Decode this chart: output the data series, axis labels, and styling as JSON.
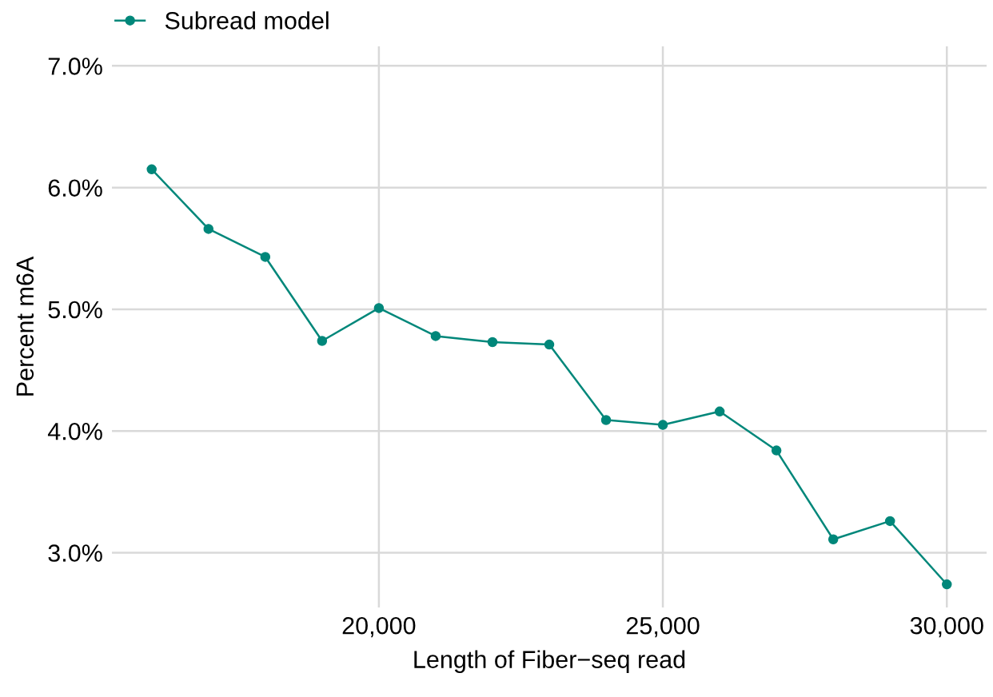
{
  "chart_data": {
    "type": "line",
    "xlabel": "Length of Fiber−seq read",
    "ylabel": "Percent m6A",
    "x": [
      16000,
      17000,
      18000,
      19000,
      20000,
      21000,
      22000,
      23000,
      24000,
      25000,
      26000,
      27000,
      28000,
      29000,
      30000
    ],
    "series": [
      {
        "name": "Subread model",
        "color": "#00877a",
        "values": [
          6.15,
          5.66,
          5.43,
          4.74,
          5.01,
          4.78,
          4.73,
          4.71,
          4.09,
          4.05,
          4.16,
          3.84,
          3.11,
          3.26,
          2.74
        ]
      }
    ],
    "xlim": [
      15300,
      30700
    ],
    "xticks": [
      {
        "value": 20000,
        "label": "20,000"
      },
      {
        "value": 25000,
        "label": "25,000"
      },
      {
        "value": 30000,
        "label": "30,000"
      }
    ],
    "ylim": [
      2.55,
      7.16
    ],
    "yticks": [
      {
        "value": 3,
        "label": "3.0%"
      },
      {
        "value": 4,
        "label": "4.0%"
      },
      {
        "value": 5,
        "label": "5.0%"
      },
      {
        "value": 6,
        "label": "6.0%"
      },
      {
        "value": 7,
        "label": "7.0%"
      }
    ],
    "grid": true,
    "legend": "top left",
    "marker": "circle",
    "line_style": "solid"
  }
}
